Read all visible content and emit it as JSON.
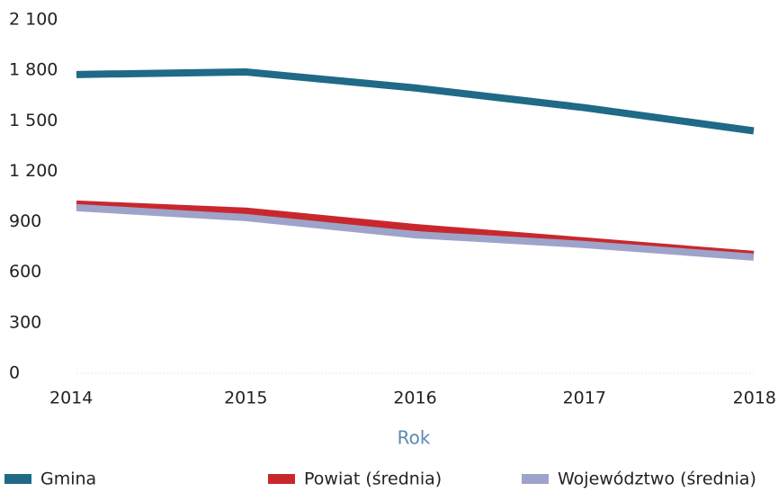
{
  "chart_data": {
    "type": "line",
    "x_label": "Rok",
    "x": [
      2014,
      2015,
      2016,
      2017,
      2018
    ],
    "xlim": [
      2014,
      2018
    ],
    "xticks": [
      2014,
      2015,
      2016,
      2017,
      2018
    ],
    "ylim": [
      0,
      2100
    ],
    "yticks": [
      0,
      300,
      600,
      900,
      {
        "value": 1200,
        "label": "1 200"
      },
      {
        "value": 1500,
        "label": "1 500"
      },
      {
        "value": 1800,
        "label": "1 800"
      },
      {
        "value": 2100,
        "label": "2 100"
      }
    ],
    "grid": false,
    "legend": "bottom",
    "series": [
      {
        "name": "Gmina",
        "color": "#1f6a86",
        "values": [
          1775,
          1790,
          1695,
          1578,
          1440
        ]
      },
      {
        "name": "Powiat (średnia)",
        "color": "#c8282d",
        "values": [
          1005,
          963,
          866,
          786,
          706
        ]
      },
      {
        "name": "Województwo (średnia)",
        "color": "#9ea3c9",
        "values": [
          984,
          925,
          823,
          765,
          690
        ]
      }
    ]
  }
}
